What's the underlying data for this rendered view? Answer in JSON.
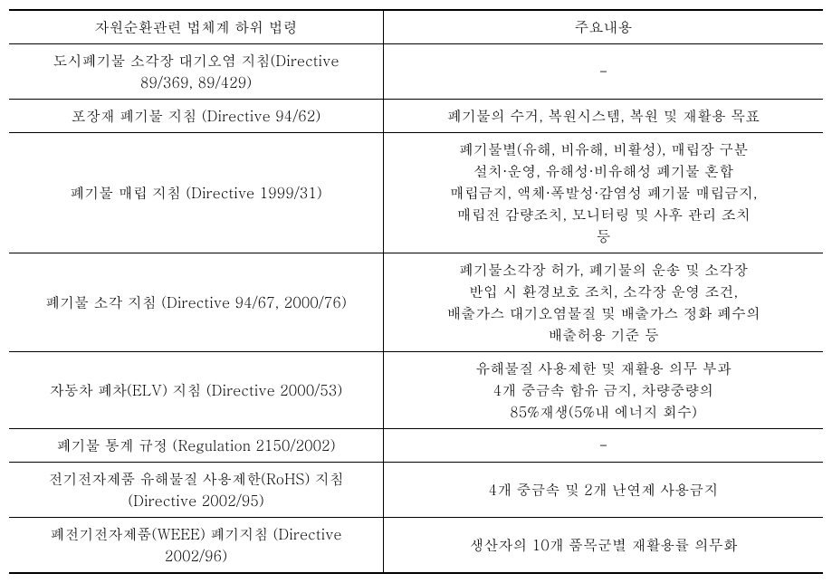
{
  "table": {
    "headers": {
      "col1": "자원순환관련 법체계 하위 법령",
      "col2": "주요내용"
    },
    "rows": [
      {
        "left": "도시폐기물 소각장 대기오염 지침(Directive\n89/369, 89/429)",
        "right": "-"
      },
      {
        "left": "포장재 폐기물 지침 (Directive 94/62)",
        "right": "폐기물의 수거, 복원시스템, 복원 및 재활용 목표"
      },
      {
        "left": "폐기물 매립 지침 (Directive 1999/31)",
        "right": "폐기물별(유해, 비유해, 비활성), 매립장 구분\n설치·운영, 유해성·비유해성 폐기물 혼합\n매립금지, 액체·폭발성·감염성 폐기물 매립금지,\n매립전 감량조치, 모니터링 및 사후 관리 조치\n등"
      },
      {
        "left": "폐기물 소각 지침 (Directive 94/67, 2000/76)",
        "right": "폐기물소각장 허가, 폐기물의 운송 및 소각장\n반입 시 환경보호 조치, 소각장 운영 조건,\n배출가스 대기오염물질 및 배출가스 정화 폐수의\n배출허용 기준 등"
      },
      {
        "left": "자동차 폐차(ELV) 지침 (Directive 2000/53)",
        "right": "유해물질 사용제한 및 재활용 의무 부과\n4개 중금속 함유 금지, 차량중량의\n85%재생(5%내 에너지 회수)"
      },
      {
        "left": "폐기물 통계 규정 (Regulation 2150/2002)",
        "right": "-"
      },
      {
        "left": "전기전자제품 유해물질 사용제한(RoHS) 지침\n(Directive 2002/95)",
        "right": "4개 중금속 및 2개 난연제 사용금지"
      },
      {
        "left": "폐전기전자제품(WEEE) 폐기지침 (Directive\n2002/96)",
        "right": "생산자의 10개 품목군별 재활용률 의무화"
      }
    ]
  }
}
